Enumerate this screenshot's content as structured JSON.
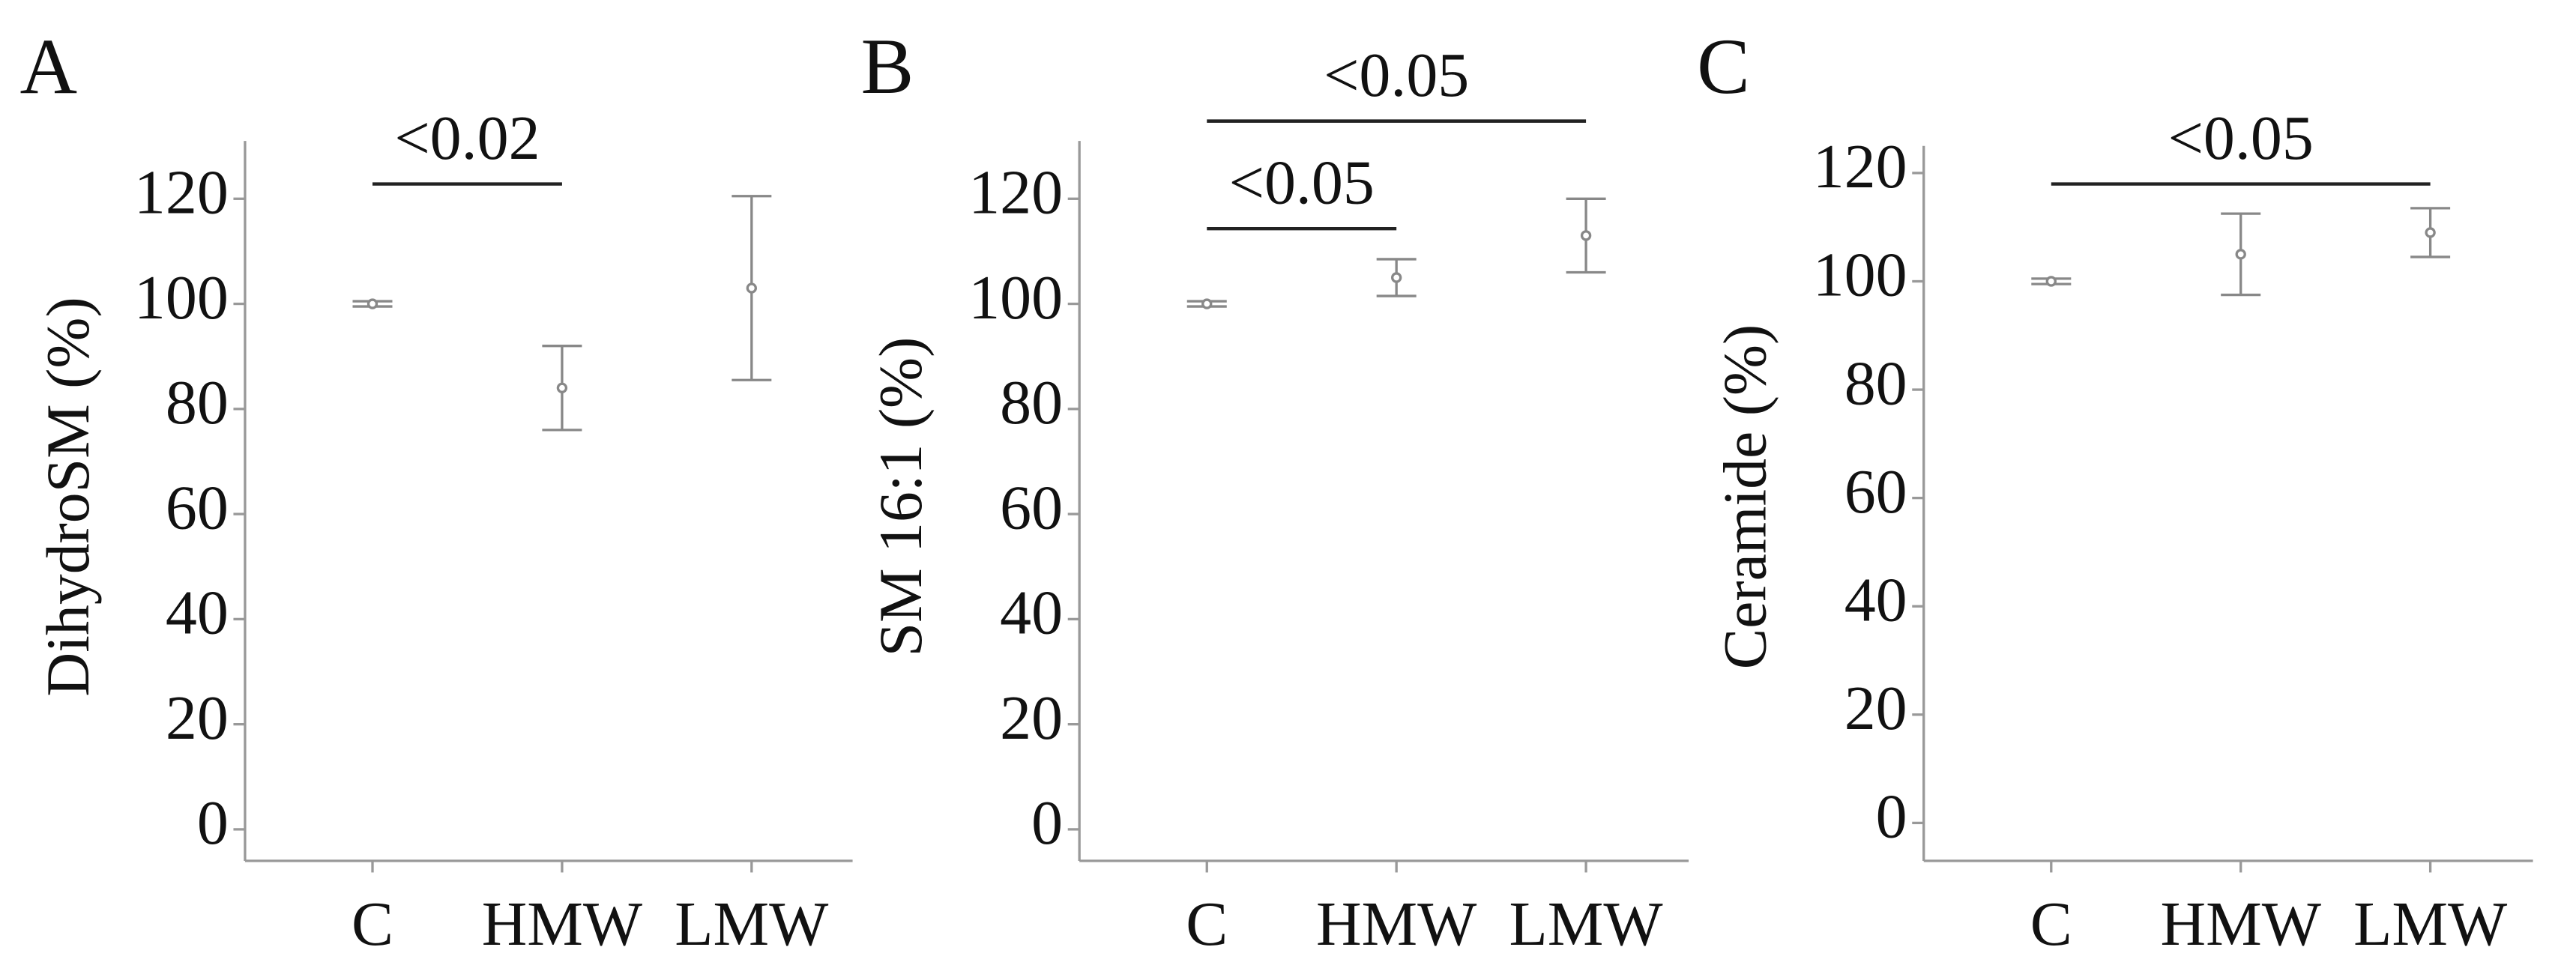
{
  "chart_data": [
    {
      "type": "errorbar",
      "panel_label": "A",
      "y_label": "DihydroSM (%)",
      "categories": [
        "C",
        "HMW",
        "LMW"
      ],
      "values": [
        100,
        84,
        103
      ],
      "errors": [
        0.5,
        8,
        17.5
      ],
      "ylim": [
        -6,
        131
      ],
      "yticks": [
        0,
        20,
        40,
        60,
        80,
        100,
        120
      ],
      "color": "#888888",
      "annotations": [
        {
          "text": "<0.02",
          "from": 0,
          "to": 1
        }
      ]
    },
    {
      "type": "errorbar",
      "panel_label": "B",
      "y_label": "SM 16:1 (%)",
      "categories": [
        "C",
        "HMW",
        "LMW"
      ],
      "values": [
        100,
        105,
        113
      ],
      "errors": [
        0.5,
        3.5,
        7
      ],
      "ylim": [
        -6,
        131
      ],
      "yticks": [
        0,
        20,
        40,
        60,
        80,
        100,
        120
      ],
      "color": "#888888",
      "annotations": [
        {
          "text": "<0.05",
          "from": 0,
          "to": 1
        },
        {
          "text": "<0.05",
          "from": 0,
          "to": 2
        }
      ]
    },
    {
      "type": "errorbar",
      "panel_label": "C",
      "y_label": "Ceramide (%)",
      "categories": [
        "C",
        "HMW",
        "LMW"
      ],
      "values": [
        100,
        105,
        109
      ],
      "errors": [
        0.5,
        7.5,
        4.5
      ],
      "ylim": [
        -7,
        125
      ],
      "yticks": [
        0,
        20,
        40,
        60,
        80,
        100,
        120
      ],
      "color": "#888888",
      "annotations": [
        {
          "text": "<0.05",
          "from": 0,
          "to": 2
        }
      ]
    }
  ]
}
